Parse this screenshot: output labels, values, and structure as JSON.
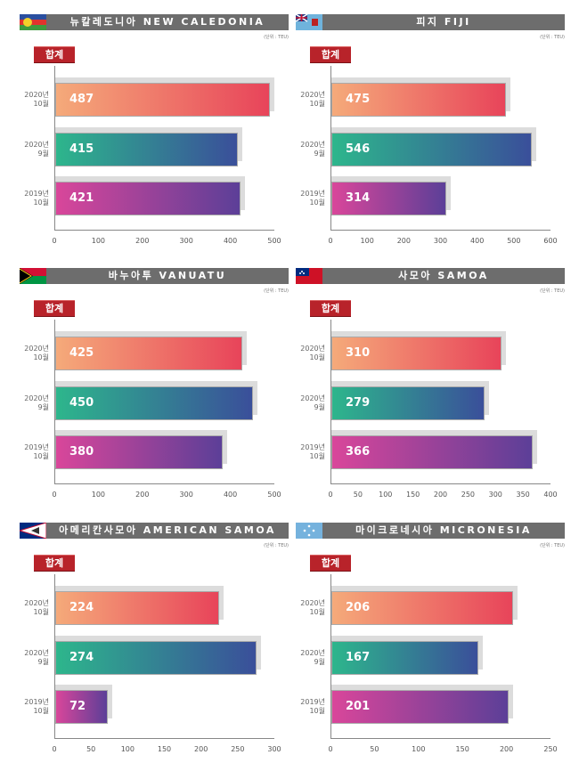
{
  "unit_label": "(단위 : TEU)",
  "total_label": "합계",
  "colors": {
    "oct2020": [
      "#f5aa7a",
      "#e8445a"
    ],
    "sep2020": [
      "#2db68c",
      "#3a4f9a"
    ],
    "oct2019": [
      "#d9469a",
      "#5c3f98"
    ]
  },
  "chart_data": [
    {
      "type": "bar",
      "title": "뉴칼레도니아 NEW CALEDONIA",
      "flag": "new-caledonia",
      "categories": [
        "2020년\n10월",
        "2020년\n9월",
        "2019년\n10월"
      ],
      "values": [
        487,
        415,
        421
      ],
      "xlim": [
        0,
        500
      ],
      "ticks": [
        0,
        100,
        200,
        300,
        400,
        500
      ]
    },
    {
      "type": "bar",
      "title": "피지 FIJI",
      "flag": "fiji",
      "categories": [
        "2020년\n10월",
        "2020년\n9월",
        "2019년\n10월"
      ],
      "values": [
        475,
        546,
        314
      ],
      "xlim": [
        0,
        600
      ],
      "ticks": [
        0,
        100,
        200,
        300,
        400,
        500,
        600
      ]
    },
    {
      "type": "bar",
      "title": "바누아투 VANUATU",
      "flag": "vanuatu",
      "categories": [
        "2020년\n10월",
        "2020년\n9월",
        "2019년\n10월"
      ],
      "values": [
        425,
        450,
        380
      ],
      "xlim": [
        0,
        500
      ],
      "ticks": [
        0,
        100,
        200,
        300,
        400,
        500
      ]
    },
    {
      "type": "bar",
      "title": "사모아 SAMOA",
      "flag": "samoa",
      "categories": [
        "2020년\n10월",
        "2020년\n9월",
        "2019년\n10월"
      ],
      "values": [
        310,
        279,
        366
      ],
      "xlim": [
        0,
        400
      ],
      "ticks": [
        0,
        50,
        100,
        150,
        200,
        250,
        300,
        350,
        400
      ]
    },
    {
      "type": "bar",
      "title": "아메리칸사모아 AMERICAN SAMOA",
      "flag": "american-samoa",
      "categories": [
        "2020년\n10월",
        "2020년\n9월",
        "2019년\n10월"
      ],
      "values": [
        224,
        274,
        72
      ],
      "xlim": [
        0,
        300
      ],
      "ticks": [
        0,
        50,
        100,
        150,
        200,
        250,
        300
      ]
    },
    {
      "type": "bar",
      "title": "마이크로네시아 MICRONESIA",
      "flag": "micronesia",
      "categories": [
        "2020년\n10월",
        "2020년\n9월",
        "2019년\n10월"
      ],
      "values": [
        206,
        167,
        201
      ],
      "xlim": [
        0,
        250
      ],
      "ticks": [
        0,
        50,
        100,
        150,
        200,
        250
      ]
    }
  ]
}
